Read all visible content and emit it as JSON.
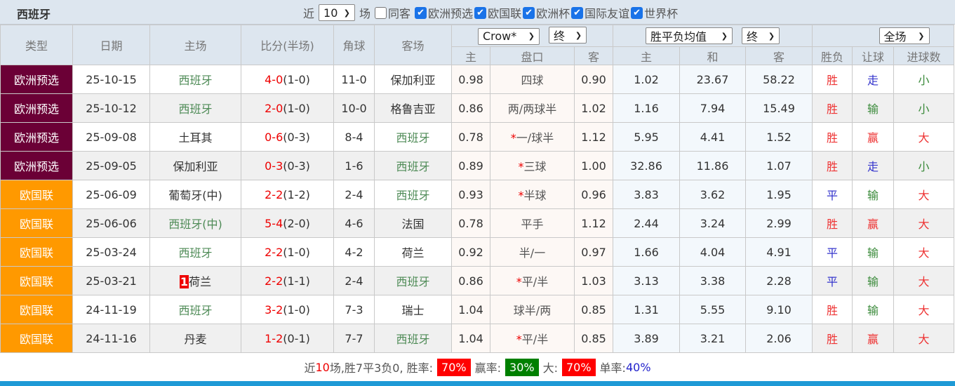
{
  "header": {
    "title": "西班牙",
    "recent_prefix": "近",
    "recent_count": "10",
    "recent_suffix": "场",
    "checkboxes": [
      {
        "label": "同客",
        "checked": false
      },
      {
        "label": "欧洲预选",
        "checked": true
      },
      {
        "label": "欧国联",
        "checked": true
      },
      {
        "label": "欧洲杯",
        "checked": true
      },
      {
        "label": "国际友谊",
        "checked": true
      },
      {
        "label": "世界杯",
        "checked": true
      }
    ]
  },
  "columns": {
    "type": "类型",
    "date": "日期",
    "home": "主场",
    "score": "比分(半场)",
    "corner": "角球",
    "away": "客场",
    "ah_company": "Crow*",
    "ah_time": "终",
    "eu_company": "胜平负均值",
    "eu_time": "终",
    "period": "全场",
    "sub": [
      "主",
      "盘口",
      "客",
      "主",
      "和",
      "客",
      "胜负",
      "让球",
      "进球数"
    ]
  },
  "colors": {
    "euro_qual": "#6b0036",
    "nations_league": "#ff9900",
    "win_red": "#e00",
    "loss_green": "#008000"
  },
  "rows": [
    {
      "type": "欧洲预选",
      "date": "25-10-15",
      "home": "西班牙",
      "score": "4-0",
      "half": "(1-0)",
      "corner": "11-0",
      "away": "保加利亚",
      "ah_h": "0.98",
      "line": "四球",
      "ah_a": "0.90",
      "eu_h": "1.02",
      "eu_d": "23.67",
      "eu_a": "58.22",
      "r1": "胜",
      "r2": "走",
      "r3": "小"
    },
    {
      "type": "欧洲预选",
      "date": "25-10-12",
      "home": "西班牙",
      "score": "2-0",
      "half": "(1-0)",
      "corner": "10-0",
      "away": "格鲁吉亚",
      "ah_h": "0.86",
      "line": "两/两球半",
      "ah_a": "1.02",
      "eu_h": "1.16",
      "eu_d": "7.94",
      "eu_a": "15.49",
      "r1": "胜",
      "r2": "输",
      "r3": "小"
    },
    {
      "type": "欧洲预选",
      "date": "25-09-08",
      "home": "土耳其",
      "score": "0-6",
      "half": "(0-3)",
      "corner": "8-4",
      "away": "西班牙",
      "ah_h": "0.78",
      "star": "*",
      "line": "一/球半",
      "ah_a": "1.12",
      "eu_h": "5.95",
      "eu_d": "4.41",
      "eu_a": "1.52",
      "r1": "胜",
      "r2": "赢",
      "r3": "大"
    },
    {
      "type": "欧洲预选",
      "date": "25-09-05",
      "home": "保加利亚",
      "score": "0-3",
      "half": "(0-3)",
      "corner": "1-6",
      "away": "西班牙",
      "ah_h": "0.89",
      "star": "*",
      "line": "三球",
      "ah_a": "1.00",
      "eu_h": "32.86",
      "eu_d": "11.86",
      "eu_a": "1.07",
      "r1": "胜",
      "r2": "走",
      "r3": "小"
    },
    {
      "type": "欧国联",
      "date": "25-06-09",
      "home": "葡萄牙(中)",
      "score": "2-2",
      "half": "(1-2)",
      "corner": "2-4",
      "away": "西班牙",
      "ah_h": "0.93",
      "star": "*",
      "line": "半球",
      "ah_a": "0.96",
      "eu_h": "3.83",
      "eu_d": "3.62",
      "eu_a": "1.95",
      "r1": "平",
      "r2": "输",
      "r3": "大"
    },
    {
      "type": "欧国联",
      "date": "25-06-06",
      "home": "西班牙(中)",
      "score": "5-4",
      "half": "(2-0)",
      "corner": "4-6",
      "away": "法国",
      "ah_h": "0.78",
      "line": "平手",
      "ah_a": "1.12",
      "eu_h": "2.44",
      "eu_d": "3.24",
      "eu_a": "2.99",
      "r1": "胜",
      "r2": "赢",
      "r3": "大"
    },
    {
      "type": "欧国联",
      "date": "25-03-24",
      "home": "西班牙",
      "score": "2-2",
      "half": "(1-0)",
      "corner": "4-2",
      "away": "荷兰",
      "ah_h": "0.92",
      "line": "半/一",
      "ah_a": "0.97",
      "eu_h": "1.66",
      "eu_d": "4.04",
      "eu_a": "4.91",
      "r1": "平",
      "r2": "输",
      "r3": "大"
    },
    {
      "type": "欧国联",
      "date": "25-03-21",
      "rank": "1",
      "home": "荷兰",
      "score": "2-2",
      "half": "(1-1)",
      "corner": "2-4",
      "away": "西班牙",
      "ah_h": "0.86",
      "star": "*",
      "line": "平/半",
      "ah_a": "1.03",
      "eu_h": "3.13",
      "eu_d": "3.38",
      "eu_a": "2.28",
      "r1": "平",
      "r2": "输",
      "r3": "大"
    },
    {
      "type": "欧国联",
      "date": "24-11-19",
      "home": "西班牙",
      "score": "3-2",
      "half": "(1-0)",
      "corner": "7-3",
      "away": "瑞士",
      "ah_h": "1.04",
      "line": "球半/两",
      "ah_a": "0.85",
      "eu_h": "1.31",
      "eu_d": "5.55",
      "eu_a": "9.10",
      "r1": "胜",
      "r2": "输",
      "r3": "大"
    },
    {
      "type": "欧国联",
      "date": "24-11-16",
      "home": "丹麦",
      "score": "1-2",
      "half": "(0-1)",
      "corner": "7-7",
      "away": "西班牙",
      "ah_h": "1.04",
      "star": "*",
      "line": "平/半",
      "ah_a": "0.85",
      "eu_h": "3.89",
      "eu_d": "3.21",
      "eu_a": "2.06",
      "r1": "胜",
      "r2": "赢",
      "r3": "大"
    }
  ],
  "summary": {
    "p1": "近",
    "n": "10",
    "p2": "场,胜7平3负0, 胜率:",
    "win_rate": "70%",
    "p3": "赢率:",
    "cover_rate": "30%",
    "p4": "大:",
    "over_rate": "70%",
    "p5": "单率:",
    "odd_rate": "40%"
  }
}
